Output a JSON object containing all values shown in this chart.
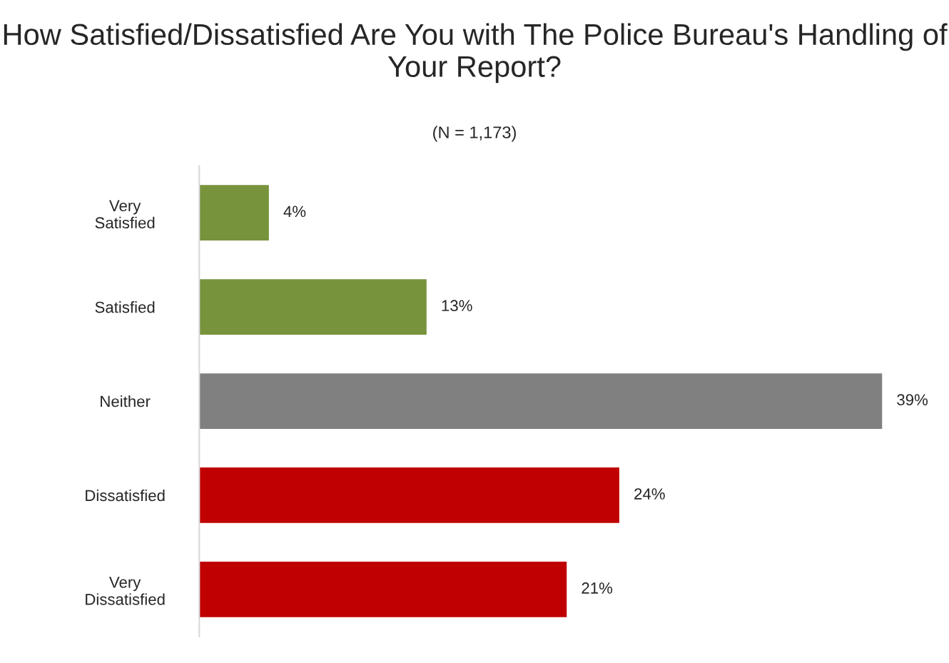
{
  "chart_data": {
    "type": "bar",
    "orientation": "horizontal",
    "title": "How Satisfied/Dissatisfied Are You with The Police Bureau's Handling of Your Report?",
    "subtitle": "(N = 1,173)",
    "categories": [
      "Very\nSatisfied",
      "Satisfied",
      "Neither",
      "Dissatisfied",
      "Very\nDissatisfied"
    ],
    "values": [
      4,
      13,
      39,
      24,
      21
    ],
    "colors": [
      "#77933c",
      "#77933c",
      "#808080",
      "#c00000",
      "#c00000"
    ],
    "value_labels": [
      "4%",
      "13%",
      "39%",
      "24%",
      "21%"
    ],
    "tick_labels": "y",
    "grid": false
  }
}
